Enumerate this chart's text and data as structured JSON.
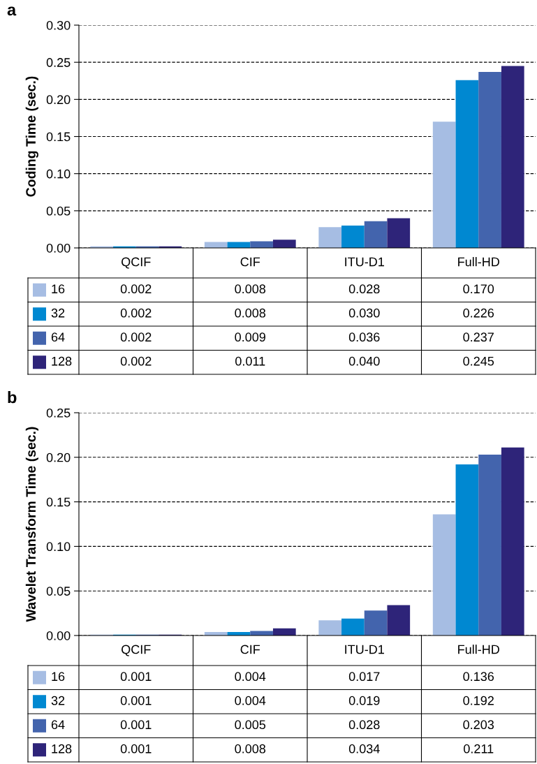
{
  "chart_data": [
    {
      "type": "bar",
      "title": "a",
      "ylabel": "Coding Time (sec.)",
      "categories": [
        "QCIF",
        "CIF",
        "ITU-D1",
        "Full-HD"
      ],
      "series": [
        {
          "name": "16",
          "color": "#a6bde3",
          "values": [
            0.002,
            0.008,
            0.028,
            0.17
          ],
          "value_labels": [
            "0.002",
            "0.008",
            "0.028",
            "0.170"
          ]
        },
        {
          "name": "32",
          "color": "#0088d1",
          "values": [
            0.002,
            0.008,
            0.03,
            0.226
          ],
          "value_labels": [
            "0.002",
            "0.008",
            "0.030",
            "0.226"
          ]
        },
        {
          "name": "64",
          "color": "#4364ad",
          "values": [
            0.002,
            0.009,
            0.036,
            0.237
          ],
          "value_labels": [
            "0.002",
            "0.009",
            "0.036",
            "0.237"
          ]
        },
        {
          "name": "128",
          "color": "#2e2479",
          "values": [
            0.002,
            0.011,
            0.04,
            0.245
          ],
          "value_labels": [
            "0.002",
            "0.011",
            "0.040",
            "0.245"
          ]
        }
      ],
      "ylim": [
        0,
        0.3
      ],
      "yticks": [
        {
          "value": 0,
          "label": "0.00"
        },
        {
          "value": 0.05,
          "label": "0.05"
        },
        {
          "value": 0.1,
          "label": "0.10"
        },
        {
          "value": 0.15,
          "label": "0.15"
        },
        {
          "value": 0.2,
          "label": "0.20"
        },
        {
          "value": 0.25,
          "label": "0.25"
        },
        {
          "value": 0.3,
          "label": "0.30"
        }
      ],
      "grid": "y",
      "legend": "bottom left"
    },
    {
      "type": "bar",
      "title": "b",
      "ylabel": "Wavelet Transform Time (sec.)",
      "categories": [
        "QCIF",
        "CIF",
        "ITU-D1",
        "Full-HD"
      ],
      "series": [
        {
          "name": "16",
          "color": "#a6bde3",
          "values": [
            0.001,
            0.004,
            0.017,
            0.136
          ],
          "value_labels": [
            "0.001",
            "0.004",
            "0.017",
            "0.136"
          ]
        },
        {
          "name": "32",
          "color": "#0088d1",
          "values": [
            0.001,
            0.004,
            0.019,
            0.192
          ],
          "value_labels": [
            "0.001",
            "0.004",
            "0.019",
            "0.192"
          ]
        },
        {
          "name": "64",
          "color": "#4364ad",
          "values": [
            0.001,
            0.005,
            0.028,
            0.203
          ],
          "value_labels": [
            "0.001",
            "0.005",
            "0.028",
            "0.203"
          ]
        },
        {
          "name": "128",
          "color": "#2e2479",
          "values": [
            0.001,
            0.008,
            0.034,
            0.211
          ],
          "value_labels": [
            "0.001",
            "0.008",
            "0.034",
            "0.211"
          ]
        }
      ],
      "ylim": [
        0,
        0.25
      ],
      "yticks": [
        {
          "value": 0,
          "label": "0.00"
        },
        {
          "value": 0.05,
          "label": "0.05"
        },
        {
          "value": 0.1,
          "label": "0.10"
        },
        {
          "value": 0.15,
          "label": "0.15"
        },
        {
          "value": 0.2,
          "label": "0.20"
        },
        {
          "value": 0.25,
          "label": "0.25"
        }
      ],
      "grid": "y",
      "legend": "bottom left"
    }
  ]
}
